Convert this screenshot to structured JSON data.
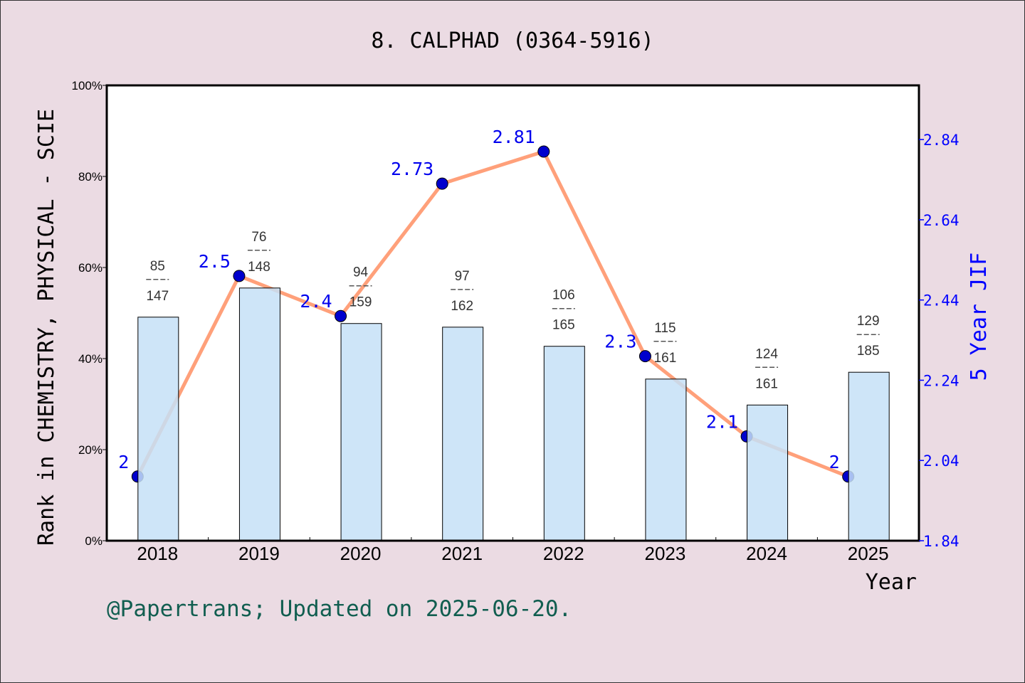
{
  "chart_data": {
    "type": "bar+line",
    "title": "8. CALPHAD (0364-5916)",
    "xlabel": "Year",
    "ylabel_left": "Rank in CHEMISTRY, PHYSICAL - SCIE",
    "ylabel_right": "5 Year JIF",
    "categories": [
      "2018",
      "2019",
      "2020",
      "2021",
      "2022",
      "2023",
      "2024",
      "2025"
    ],
    "left_axis": {
      "range": [
        0,
        100
      ],
      "ticks": [
        "0%",
        "20%",
        "40%",
        "60%",
        "80%",
        "100%"
      ]
    },
    "right_axis": {
      "range": [
        1.84,
        2.975
      ],
      "ticks": [
        "1.84",
        "2.04",
        "2.24",
        "2.44",
        "2.64",
        "2.84"
      ]
    },
    "bars": {
      "values": [
        49.1,
        55.5,
        47.7,
        46.9,
        42.7,
        35.5,
        29.8,
        37.0
      ],
      "rank": [
        "85",
        "76",
        "94",
        "97",
        "106",
        "115",
        "124",
        "129"
      ],
      "total": [
        "147",
        "148",
        "159",
        "162",
        "165",
        "161",
        "161",
        "185"
      ],
      "color": "#c5e0f7"
    },
    "line": {
      "values": [
        2.0,
        2.5,
        2.4,
        2.73,
        2.81,
        2.3,
        2.1,
        2.0
      ],
      "labels": [
        "2",
        "2.5",
        "2.4",
        "2.73",
        "2.81",
        "2.3",
        "2.1",
        "2"
      ],
      "color": "#ffa07a",
      "marker_color": "#0000cd"
    },
    "grid": false,
    "footer": "@Papertrans; Updated on 2025-06-20."
  }
}
